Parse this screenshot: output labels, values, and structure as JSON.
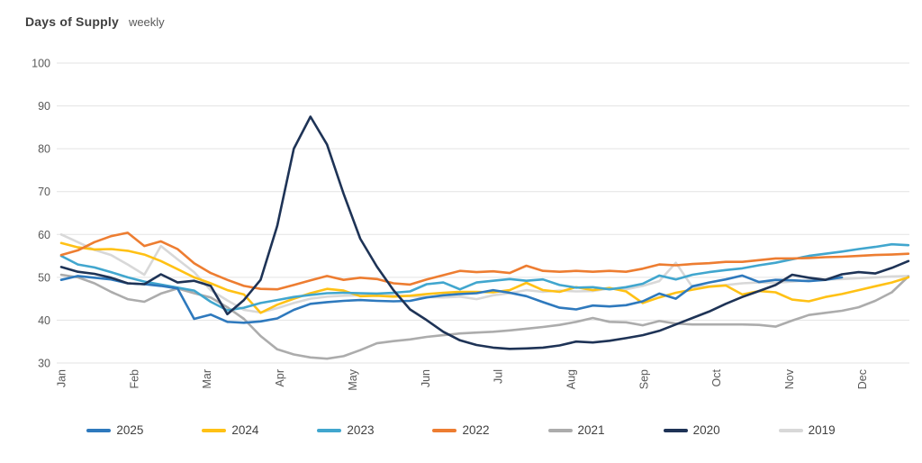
{
  "title": {
    "text": "Days of Supply",
    "subtitle": "weekly"
  },
  "colors": {
    "axis_text": "#595959",
    "grid": "#e3e3e3",
    "title": "#3f3f3f",
    "subtitle": "#595959",
    "legend_text": "#404040",
    "background": "#ffffff"
  },
  "chart_data": {
    "type": "line",
    "title": "Days of Supply",
    "subtitle": "weekly",
    "xlabel": "",
    "ylabel": "",
    "x_unit": "week-of-year",
    "ylim": [
      30,
      100
    ],
    "y_ticks": [
      100,
      90,
      80,
      70,
      60,
      50,
      40,
      30
    ],
    "months": [
      "Jan",
      "Feb",
      "Mar",
      "Apr",
      "May",
      "Jun",
      "Jul",
      "Aug",
      "Sep",
      "Oct",
      "Nov",
      "Dec"
    ],
    "grid": "horizontal",
    "legend_position": "bottom",
    "draw_order": [
      "2019",
      "2021",
      "2024",
      "2023",
      "2022",
      "2025",
      "2020"
    ],
    "series": [
      {
        "name": "2025",
        "color": "#2e79bd",
        "values": [
          49.4,
          50.3,
          49.9,
          49.5,
          48.6,
          48.4,
          48.0,
          47.4,
          40.3,
          41.3,
          39.6,
          39.4,
          39.7,
          40.4,
          42.4,
          43.8,
          44.2,
          44.5,
          44.7,
          44.5,
          44.4,
          44.5,
          45.3,
          45.8,
          46.1,
          46.3,
          47.0,
          46.4,
          45.6,
          44.2,
          42.9,
          42.5,
          43.4,
          43.2,
          43.5,
          44.4,
          46.2,
          45.0,
          47.9,
          48.8,
          49.5,
          50.4,
          48.9,
          49.4,
          49.3,
          49.1,
          49.4,
          50.0
        ]
      },
      {
        "name": "2024",
        "color": "#ffc115",
        "values": [
          58.0,
          57.0,
          56.5,
          56.6,
          56.2,
          55.3,
          53.8,
          51.9,
          50.0,
          48.6,
          47.0,
          46.0,
          41.7,
          43.6,
          45.0,
          46.3,
          47.3,
          46.9,
          45.6,
          45.7,
          45.5,
          45.7,
          46.1,
          46.4,
          46.6,
          46.6,
          46.5,
          47.0,
          48.7,
          47.0,
          46.6,
          47.7,
          47.0,
          47.5,
          46.7,
          44.0,
          45.3,
          46.4,
          47.1,
          47.8,
          48.1,
          46.0,
          46.8,
          46.5,
          44.8,
          44.4,
          45.4,
          46.1,
          47.0,
          47.9,
          48.8,
          50.0
        ]
      },
      {
        "name": "2023",
        "color": "#41a6ce",
        "values": [
          55.0,
          53.0,
          52.3,
          51.2,
          50.0,
          49.0,
          48.3,
          47.6,
          46.9,
          44.3,
          42.3,
          42.9,
          44.0,
          44.7,
          45.4,
          45.9,
          46.3,
          46.4,
          46.3,
          46.2,
          46.4,
          46.7,
          48.4,
          48.8,
          47.2,
          48.8,
          49.2,
          49.6,
          49.2,
          49.5,
          48.2,
          47.6,
          47.7,
          47.2,
          47.7,
          48.5,
          50.4,
          49.5,
          50.6,
          51.2,
          51.7,
          52.1,
          52.8,
          53.4,
          54.2,
          55.0,
          55.5,
          56.0,
          56.6,
          57.1,
          57.7,
          57.5
        ]
      },
      {
        "name": "2022",
        "color": "#ed7d31",
        "values": [
          55.2,
          56.3,
          58.2,
          59.6,
          60.4,
          57.3,
          58.4,
          56.6,
          53.3,
          51.0,
          49.4,
          48.0,
          47.3,
          47.2,
          48.2,
          49.3,
          50.3,
          49.4,
          49.9,
          49.6,
          48.6,
          48.3,
          49.5,
          50.5,
          51.5,
          51.2,
          51.4,
          51.0,
          52.7,
          51.5,
          51.3,
          51.5,
          51.3,
          51.5,
          51.3,
          52.0,
          53.0,
          52.8,
          53.1,
          53.3,
          53.6,
          53.6,
          54.0,
          54.4,
          54.4,
          54.5,
          54.7,
          54.8,
          55.0,
          55.2,
          55.3,
          55.5
        ]
      },
      {
        "name": "2021",
        "color": "#acacac",
        "values": [
          50.6,
          50.0,
          48.6,
          46.6,
          44.9,
          44.3,
          46.2,
          47.4,
          46.3,
          45.3,
          43.0,
          40.3,
          36.3,
          33.2,
          32.0,
          31.3,
          31.0,
          31.6,
          33.0,
          34.6,
          35.1,
          35.5,
          36.1,
          36.5,
          36.9,
          37.1,
          37.3,
          37.6,
          38.0,
          38.4,
          38.9,
          39.6,
          40.5,
          39.6,
          39.5,
          38.8,
          39.8,
          39.2,
          39.0,
          39.0,
          39.0,
          39.0,
          38.9,
          38.5,
          39.9,
          41.2,
          41.7,
          42.2,
          43.0,
          44.5,
          46.5,
          50.2
        ]
      },
      {
        "name": "2020",
        "color": "#1e3356",
        "values": [
          52.4,
          51.3,
          50.8,
          49.9,
          48.6,
          48.4,
          50.7,
          48.8,
          49.2,
          48.0,
          41.4,
          44.7,
          49.4,
          62.0,
          80.0,
          87.5,
          81.0,
          69.5,
          59.0,
          52.5,
          47.0,
          42.5,
          40.0,
          37.3,
          35.3,
          34.2,
          33.6,
          33.3,
          33.4,
          33.6,
          34.1,
          35.0,
          34.8,
          35.2,
          35.8,
          36.5,
          37.5,
          39.0,
          40.5,
          42.0,
          43.8,
          45.4,
          46.8,
          48.2,
          50.6,
          49.9,
          49.4,
          50.7,
          51.2,
          50.9,
          52.2,
          53.8
        ]
      },
      {
        "name": "2019",
        "color": "#d8d8d8",
        "values": [
          60.0,
          58.2,
          56.4,
          55.2,
          53.0,
          50.6,
          57.3,
          54.2,
          51.2,
          47.0,
          44.6,
          42.4,
          41.8,
          42.8,
          44.0,
          45.0,
          45.5,
          45.7,
          45.8,
          45.7,
          45.8,
          45.6,
          45.4,
          45.3,
          45.5,
          44.9,
          45.8,
          46.3,
          47.0,
          46.6,
          46.9,
          46.7,
          46.8,
          47.4,
          47.2,
          48.0,
          49.1,
          53.4,
          47.7,
          47.9,
          48.2,
          48.6,
          48.8,
          48.7,
          49.0,
          49.3,
          49.5,
          49.6,
          49.8,
          50.0,
          50.2,
          50.3
        ]
      }
    ]
  }
}
